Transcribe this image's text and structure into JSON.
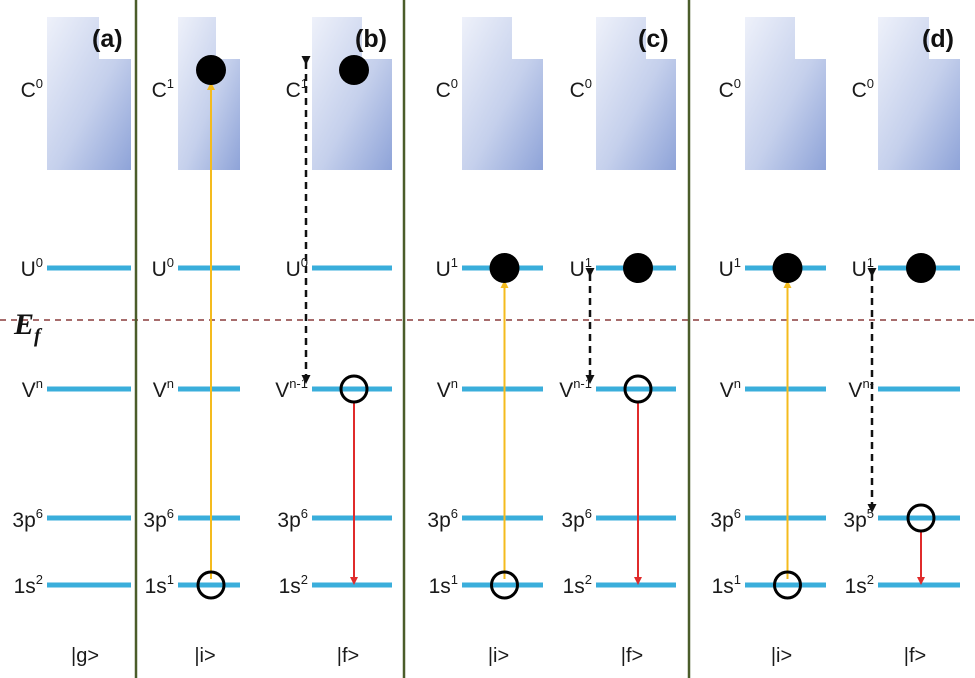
{
  "colors": {
    "level": "#3aaedb",
    "divider": "#4b5d2a",
    "fermi": "#8a3b3b",
    "excitation": "#f4bb1e",
    "emission": "#e02b2b",
    "transfer": "#111111",
    "band_light": "#eef1fa",
    "band_dark": "#8ea3d8"
  },
  "fermi_label": {
    "main": "E",
    "sub": "f"
  },
  "panels": [
    {
      "tag": "(a)"
    },
    {
      "tag": "(b)"
    },
    {
      "tag": "(c)"
    },
    {
      "tag": "(d)"
    }
  ],
  "columns": [
    {
      "state": "|g>",
      "labels": {
        "C": [
          "C",
          "0"
        ],
        "U": [
          "U",
          "0"
        ],
        "V": [
          "V",
          "n"
        ],
        "P": [
          "3p",
          "6"
        ],
        "S": [
          "1s",
          "2"
        ]
      },
      "filled": [],
      "holes": [],
      "arrows": []
    },
    {
      "state": "|i>",
      "labels": {
        "C": [
          "C",
          "1"
        ],
        "U": [
          "U",
          "0"
        ],
        "V": [
          "V",
          "n"
        ],
        "P": [
          "3p",
          "6"
        ],
        "S": [
          "1s",
          "1"
        ]
      },
      "filled": [
        "C"
      ],
      "holes": [
        "S"
      ],
      "arrows": [
        {
          "kind": "excitation",
          "from": "S",
          "to": "C"
        }
      ]
    },
    {
      "state": "|f>",
      "labels": {
        "C": [
          "C",
          "1"
        ],
        "U": [
          "U",
          "0"
        ],
        "V": [
          "V",
          "n-1"
        ],
        "P": [
          "3p",
          "6"
        ],
        "S": [
          "1s",
          "2"
        ]
      },
      "filled": [
        "C"
      ],
      "holes": [
        "V"
      ],
      "arrows": [
        {
          "kind": "transfer",
          "from": "V",
          "to": "C"
        },
        {
          "kind": "emission",
          "from": "V",
          "to": "S"
        }
      ]
    },
    {
      "state": "|i>",
      "labels": {
        "C": [
          "C",
          "0"
        ],
        "U": [
          "U",
          "1"
        ],
        "V": [
          "V",
          "n"
        ],
        "P": [
          "3p",
          "6"
        ],
        "S": [
          "1s",
          "1"
        ]
      },
      "filled": [
        "U"
      ],
      "holes": [
        "S"
      ],
      "arrows": [
        {
          "kind": "excitation",
          "from": "S",
          "to": "U"
        }
      ]
    },
    {
      "state": "|f>",
      "labels": {
        "C": [
          "C",
          "0"
        ],
        "U": [
          "U",
          "1"
        ],
        "V": [
          "V",
          "n-1"
        ],
        "P": [
          "3p",
          "6"
        ],
        "S": [
          "1s",
          "2"
        ]
      },
      "filled": [
        "U"
      ],
      "holes": [
        "V"
      ],
      "arrows": [
        {
          "kind": "transfer",
          "from": "V",
          "to": "U"
        },
        {
          "kind": "emission",
          "from": "V",
          "to": "S"
        }
      ]
    },
    {
      "state": "|i>",
      "labels": {
        "C": [
          "C",
          "0"
        ],
        "U": [
          "U",
          "1"
        ],
        "V": [
          "V",
          "n"
        ],
        "P": [
          "3p",
          "6"
        ],
        "S": [
          "1s",
          "1"
        ]
      },
      "filled": [
        "U"
      ],
      "holes": [
        "S"
      ],
      "arrows": [
        {
          "kind": "excitation",
          "from": "S",
          "to": "U"
        }
      ]
    },
    {
      "state": "|f>",
      "labels": {
        "C": [
          "C",
          "0"
        ],
        "U": [
          "U",
          "1"
        ],
        "V": [
          "V",
          "n-"
        ],
        "P": [
          "3p",
          "5"
        ],
        "S": [
          "1s",
          "2"
        ]
      },
      "filled": [
        "U"
      ],
      "holes": [
        "P"
      ],
      "arrows": [
        {
          "kind": "transfer",
          "from": "P",
          "to": "U"
        },
        {
          "kind": "emission",
          "from": "P",
          "to": "S"
        }
      ]
    }
  ]
}
